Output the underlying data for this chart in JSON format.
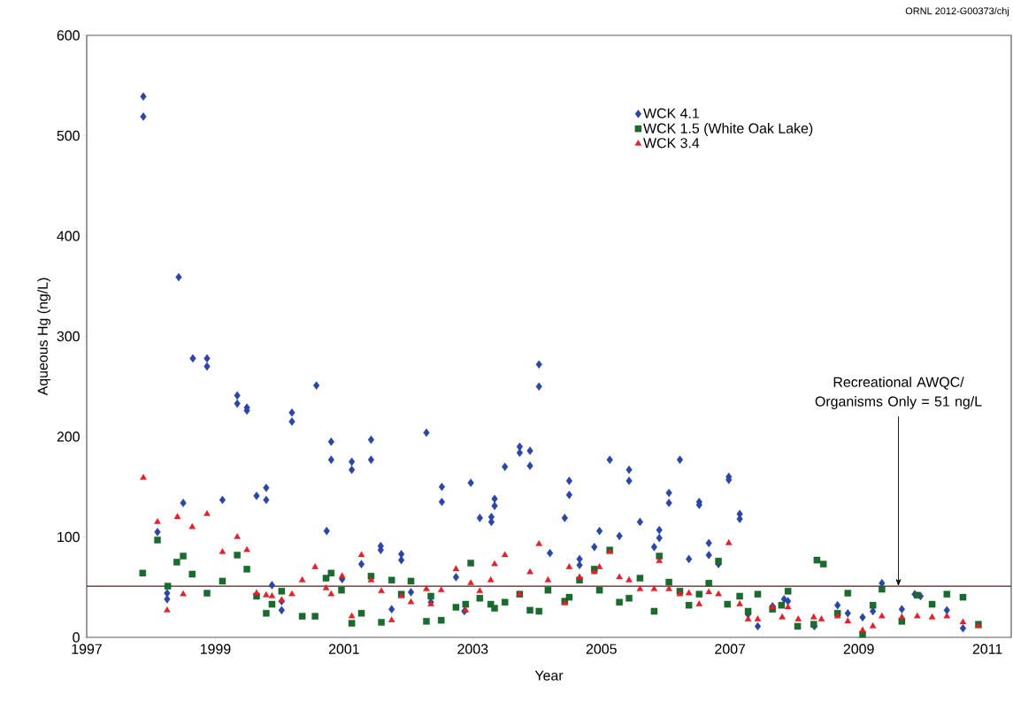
{
  "chart_data": {
    "type": "scatter",
    "xlabel": "Year",
    "ylabel": "Aqueous Hg (ng/L)",
    "xlim": [
      1997,
      2011.37
    ],
    "ylim": [
      0,
      600
    ],
    "xticks": [
      1997,
      1999,
      2001,
      2003,
      2005,
      2007,
      2009,
      2011
    ],
    "yticks": [
      0,
      100,
      200,
      300,
      400,
      500,
      600
    ],
    "legend": "top right",
    "annotations": [
      "ORNL 2012-G00373/chj"
    ],
    "ref_lines": [
      {
        "axis": "y",
        "value": 51,
        "label": "Recreational AWQC/ Organisms Only = 51 ng/L",
        "color": "#5a1a1a",
        "line_style": "solid"
      }
    ],
    "series": [
      {
        "name": "WCK 4.1",
        "color": "#2a47a8",
        "marker": "diamond",
        "x": [
          1997.88,
          1997.88,
          1998.43,
          1998.65,
          1998.87,
          1998.87,
          1999.34,
          1999.34,
          1999.49,
          1999.49,
          2000.19,
          2000.19,
          1998.5,
          1999.11,
          1999.64,
          1999.79,
          1999.79,
          1998.1,
          1998.25,
          1998.25,
          1999.88,
          2000.03,
          2000.03,
          2000.57,
          2004.03,
          2004.03,
          2000.8,
          2000.8,
          2001.12,
          2001.12,
          2001.42,
          2001.42,
          2002.28,
          2002.52,
          2002.52,
          2002.97,
          2003.11,
          2003.29,
          2003.29,
          2003.34,
          2003.34,
          2003.5,
          2003.73,
          2003.73,
          2003.89,
          2003.89,
          2000.73,
          2001.57,
          2001.57,
          2001.27,
          2001.89,
          2001.89,
          2000.97,
          2001.74,
          2002.04,
          2002.35,
          2002.74,
          2002.87,
          2004.2,
          2004.5,
          2004.5,
          2004.43,
          2004.66,
          2004.66,
          2004.89,
          2004.97,
          2005.13,
          2005.28,
          2005.43,
          2005.43,
          2005.6,
          2005.82,
          2005.9,
          2005.9,
          2006.05,
          2006.05,
          2006.22,
          2006.36,
          2006.52,
          2006.52,
          2006.67,
          2006.67,
          2006.82,
          2006.98,
          2006.98,
          2007.15,
          2007.15,
          2007.28,
          2007.43,
          2007.66,
          2007.84,
          2007.9,
          2008.31,
          2008.67,
          2008.83,
          2009.06,
          2009.22,
          2009.36,
          2009.67,
          2009.87,
          2009.96,
          2010.37,
          2010.62
        ],
        "values": [
          539,
          519,
          359,
          278,
          278,
          270,
          241,
          233,
          229,
          226,
          224,
          215,
          134,
          137,
          141,
          149,
          137,
          105,
          44,
          38,
          52,
          36,
          27,
          251,
          272,
          250,
          195,
          177,
          175,
          167,
          197,
          177,
          204,
          150,
          135,
          154,
          119,
          120,
          115,
          138,
          131,
          170,
          190,
          184,
          186,
          171,
          106,
          91,
          87,
          73,
          83,
          77,
          58,
          28,
          45,
          35,
          60,
          26,
          84,
          156,
          142,
          119,
          78,
          72,
          90,
          106,
          177,
          101,
          167,
          156,
          115,
          90,
          107,
          99,
          144,
          134,
          177,
          78,
          135,
          132,
          94,
          82,
          73,
          160,
          157,
          123,
          118,
          23,
          11,
          31,
          38,
          36,
          11,
          32,
          24,
          20,
          26,
          54,
          28,
          43,
          41,
          27,
          9
        ]
      },
      {
        "name": "WCK 1.5 (White Oak Lake)",
        "color": "#1a6b2e",
        "marker": "square",
        "x": [
          1997.87,
          1998.1,
          1998.26,
          1998.4,
          1998.5,
          1998.64,
          1998.87,
          1999.11,
          1999.34,
          1999.49,
          1999.64,
          1999.79,
          1999.88,
          2000.03,
          2000.35,
          2000.55,
          2000.72,
          2000.8,
          2000.96,
          2001.12,
          2001.27,
          2001.42,
          2001.58,
          2001.74,
          2001.89,
          2002.04,
          2002.28,
          2002.35,
          2002.51,
          2002.74,
          2002.89,
          2002.97,
          2003.11,
          2003.28,
          2003.34,
          2003.5,
          2003.73,
          2003.89,
          2004.03,
          2004.17,
          2004.43,
          2004.5,
          2004.66,
          2004.89,
          2004.97,
          2005.13,
          2005.28,
          2005.43,
          2005.6,
          2005.82,
          2005.9,
          2006.05,
          2006.22,
          2006.36,
          2006.52,
          2006.67,
          2006.82,
          2006.96,
          2007.15,
          2007.28,
          2007.43,
          2007.66,
          2007.8,
          2007.9,
          2008.05,
          2008.3,
          2008.35,
          2008.45,
          2008.67,
          2008.83,
          2009.06,
          2009.22,
          2009.36,
          2009.67,
          2009.91,
          2010.14,
          2010.37,
          2010.62,
          2010.86
        ],
        "values": [
          64,
          97,
          51,
          75,
          81,
          63,
          44,
          56,
          82,
          68,
          41,
          24,
          33,
          46,
          21,
          21,
          59,
          64,
          47,
          14,
          24,
          61,
          15,
          57,
          43,
          56,
          16,
          41,
          17,
          30,
          33,
          74,
          39,
          33,
          29,
          35,
          43,
          27,
          26,
          47,
          36,
          40,
          57,
          68,
          47,
          87,
          35,
          39,
          59,
          26,
          81,
          55,
          46,
          32,
          43,
          54,
          76,
          33,
          41,
          26,
          43,
          28,
          32,
          46,
          11,
          13,
          77,
          73,
          24,
          44,
          3,
          32,
          48,
          16,
          42,
          33,
          43,
          40,
          13
        ]
      },
      {
        "name": "WCK 3.4",
        "color": "#e8202a",
        "marker": "triangle",
        "x": [
          1997.88,
          1998.1,
          1998.25,
          1998.41,
          1998.5,
          1998.64,
          1998.87,
          1999.11,
          1999.34,
          1999.49,
          1999.64,
          1999.79,
          1999.88,
          2000.03,
          2000.19,
          2000.35,
          2000.55,
          2000.72,
          2000.8,
          2000.97,
          2001.12,
          2001.27,
          2001.42,
          2001.58,
          2001.74,
          2001.89,
          2002.04,
          2002.28,
          2002.35,
          2002.51,
          2002.74,
          2002.89,
          2002.97,
          2003.11,
          2003.28,
          2003.34,
          2003.5,
          2003.73,
          2003.89,
          2004.03,
          2004.17,
          2004.43,
          2004.5,
          2004.66,
          2004.89,
          2004.97,
          2005.13,
          2005.28,
          2005.43,
          2005.6,
          2005.82,
          2005.9,
          2006.05,
          2006.22,
          2006.36,
          2006.52,
          2006.67,
          2006.82,
          2006.98,
          2007.15,
          2007.28,
          2007.43,
          2007.66,
          2007.81,
          2007.9,
          2008.06,
          2008.3,
          2008.42,
          2008.67,
          2008.83,
          2009.06,
          2009.22,
          2009.36,
          2009.67,
          2009.91,
          2010.14,
          2010.37,
          2010.62,
          2010.86
        ],
        "values": [
          159,
          115,
          27,
          120,
          43,
          110,
          123,
          85,
          100,
          87,
          44,
          42,
          41,
          37,
          43,
          57,
          70,
          49,
          43,
          61,
          21,
          82,
          57,
          46,
          17,
          41,
          35,
          48,
          33,
          47,
          68,
          27,
          54,
          46,
          57,
          73,
          82,
          43,
          65,
          93,
          57,
          34,
          70,
          60,
          65,
          70,
          85,
          60,
          57,
          48,
          48,
          76,
          48,
          43,
          44,
          33,
          45,
          43,
          94,
          33,
          18,
          18,
          30,
          20,
          30,
          18,
          20,
          18,
          21,
          16,
          7,
          11,
          21,
          20,
          21,
          20,
          21,
          15,
          11
        ]
      }
    ]
  }
}
